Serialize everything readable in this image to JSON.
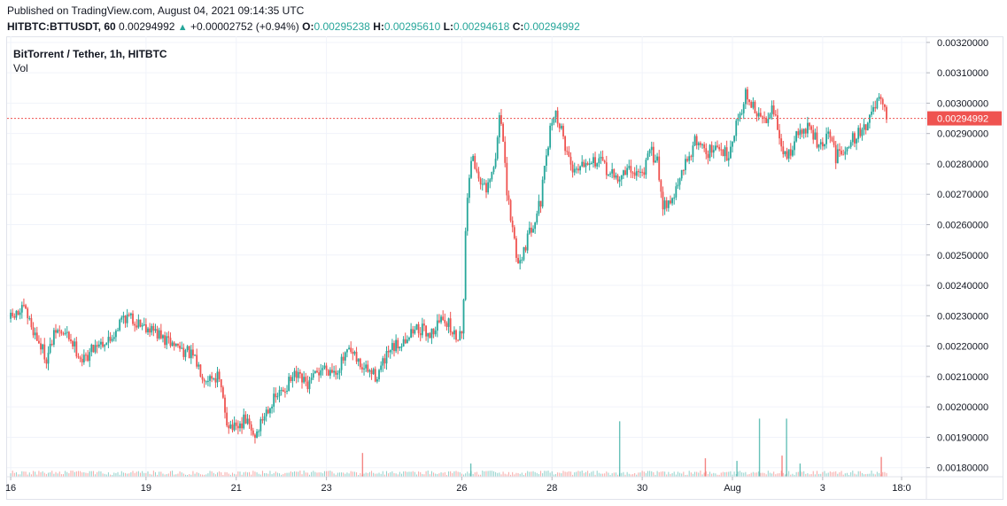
{
  "header": {
    "published": "Published on TradingView.com, August 04, 2021 09:14:35 UTC",
    "symbol": "HITBTC:BTTUSDT, 60",
    "last": "0.00294992",
    "change": "+0.00002752 (+0.94%)",
    "o_label": "O:",
    "o_value": "0.00295238",
    "h_label": "H:",
    "h_value": "0.00295610",
    "l_label": "L:",
    "l_value": "0.00294618",
    "c_label": "C:",
    "c_value": "0.00294992"
  },
  "legend": {
    "title": "BitTorrent / Tether, 1h, HITBTC",
    "volume": "Vol"
  },
  "colors": {
    "up": "#26a69a",
    "down": "#ef5350",
    "grid": "#f0f3fa",
    "price_line": "#ef5350",
    "axis_border": "#e0e3eb"
  },
  "chart_data": {
    "type": "candlestick",
    "y_axis": {
      "ylim": [
        0.00177,
        0.00322
      ],
      "ticks": [
        "0.00180000",
        "0.00190000",
        "0.00200000",
        "0.00210000",
        "0.00220000",
        "0.00230000",
        "0.00240000",
        "0.00250000",
        "0.00260000",
        "0.00270000",
        "0.00280000",
        "0.00290000",
        "0.00300000",
        "0.00310000",
        "0.00320000"
      ],
      "tick_values": [
        0.0018,
        0.0019,
        0.002,
        0.0021,
        0.0022,
        0.0023,
        0.0024,
        0.0025,
        0.0026,
        0.0027,
        0.0028,
        0.0029,
        0.003,
        0.0031,
        0.0032
      ]
    },
    "x_axis": {
      "ticks": [
        "16",
        "19",
        "21",
        "23",
        "26",
        "28",
        "30",
        "Aug",
        "3",
        "18:0"
      ],
      "tick_days": [
        16.0,
        19.0,
        21.0,
        23.0,
        26.0,
        28.0,
        30.0,
        32.0,
        34.0,
        35.75
      ],
      "xlim": [
        15.92,
        36.3
      ]
    },
    "last_price": 0.00294992,
    "last_price_label": "0.00294992",
    "price_path": [
      [
        16.0,
        0.00229
      ],
      [
        16.3,
        0.00232
      ],
      [
        16.6,
        0.00222
      ],
      [
        16.8,
        0.00216
      ],
      [
        17.0,
        0.00225
      ],
      [
        17.3,
        0.00223
      ],
      [
        17.6,
        0.00215
      ],
      [
        17.9,
        0.00221
      ],
      [
        18.2,
        0.00222
      ],
      [
        18.5,
        0.0023
      ],
      [
        18.8,
        0.00228
      ],
      [
        19.1,
        0.00226
      ],
      [
        19.4,
        0.00222
      ],
      [
        19.7,
        0.0022
      ],
      [
        20.0,
        0.00217
      ],
      [
        20.3,
        0.0021
      ],
      [
        20.6,
        0.0021
      ],
      [
        20.8,
        0.00195
      ],
      [
        21.0,
        0.00192
      ],
      [
        21.2,
        0.00196
      ],
      [
        21.4,
        0.0019
      ],
      [
        21.7,
        0.002
      ],
      [
        22.0,
        0.00205
      ],
      [
        22.3,
        0.0021
      ],
      [
        22.6,
        0.00207
      ],
      [
        22.9,
        0.00213
      ],
      [
        23.2,
        0.00212
      ],
      [
        23.5,
        0.00218
      ],
      [
        23.8,
        0.00213
      ],
      [
        24.1,
        0.0021
      ],
      [
        24.4,
        0.00218
      ],
      [
        24.7,
        0.00222
      ],
      [
        25.0,
        0.00226
      ],
      [
        25.3,
        0.00224
      ],
      [
        25.6,
        0.0023
      ],
      [
        25.85,
        0.00223
      ],
      [
        26.0,
        0.00225
      ],
      [
        26.05,
        0.0024
      ],
      [
        26.1,
        0.00265
      ],
      [
        26.2,
        0.00283
      ],
      [
        26.35,
        0.00277
      ],
      [
        26.55,
        0.0027
      ],
      [
        26.75,
        0.00281
      ],
      [
        26.85,
        0.003
      ],
      [
        27.0,
        0.0027
      ],
      [
        27.25,
        0.00247
      ],
      [
        27.45,
        0.00255
      ],
      [
        27.75,
        0.00268
      ],
      [
        27.95,
        0.0029
      ],
      [
        28.05,
        0.00298
      ],
      [
        28.2,
        0.00291
      ],
      [
        28.45,
        0.00278
      ],
      [
        28.8,
        0.00282
      ],
      [
        29.1,
        0.0028
      ],
      [
        29.4,
        0.00275
      ],
      [
        29.7,
        0.00278
      ],
      [
        30.0,
        0.00277
      ],
      [
        30.2,
        0.00284
      ],
      [
        30.35,
        0.0028
      ],
      [
        30.45,
        0.00267
      ],
      [
        30.65,
        0.00268
      ],
      [
        30.8,
        0.00273
      ],
      [
        31.0,
        0.00282
      ],
      [
        31.2,
        0.00288
      ],
      [
        31.45,
        0.00284
      ],
      [
        31.7,
        0.00285
      ],
      [
        31.9,
        0.00283
      ],
      [
        32.1,
        0.00294
      ],
      [
        32.3,
        0.00303
      ],
      [
        32.5,
        0.00297
      ],
      [
        32.7,
        0.00294
      ],
      [
        32.9,
        0.003
      ],
      [
        33.05,
        0.00286
      ],
      [
        33.2,
        0.00282
      ],
      [
        33.45,
        0.0029
      ],
      [
        33.7,
        0.00292
      ],
      [
        33.95,
        0.00285
      ],
      [
        34.15,
        0.0029
      ],
      [
        34.3,
        0.00282
      ],
      [
        34.5,
        0.00286
      ],
      [
        34.8,
        0.0029
      ],
      [
        35.0,
        0.00294
      ],
      [
        35.25,
        0.00301
      ],
      [
        35.35,
        0.00297
      ],
      [
        35.45,
        0.00295
      ]
    ],
    "volume_spikes": [
      [
        23.8,
        0.18
      ],
      [
        26.2,
        0.1
      ],
      [
        29.5,
        0.42
      ],
      [
        31.4,
        0.14
      ],
      [
        32.1,
        0.12
      ],
      [
        32.6,
        0.44
      ],
      [
        33.1,
        0.16
      ],
      [
        33.2,
        0.44
      ],
      [
        33.5,
        0.1
      ],
      [
        35.3,
        0.15
      ]
    ]
  }
}
